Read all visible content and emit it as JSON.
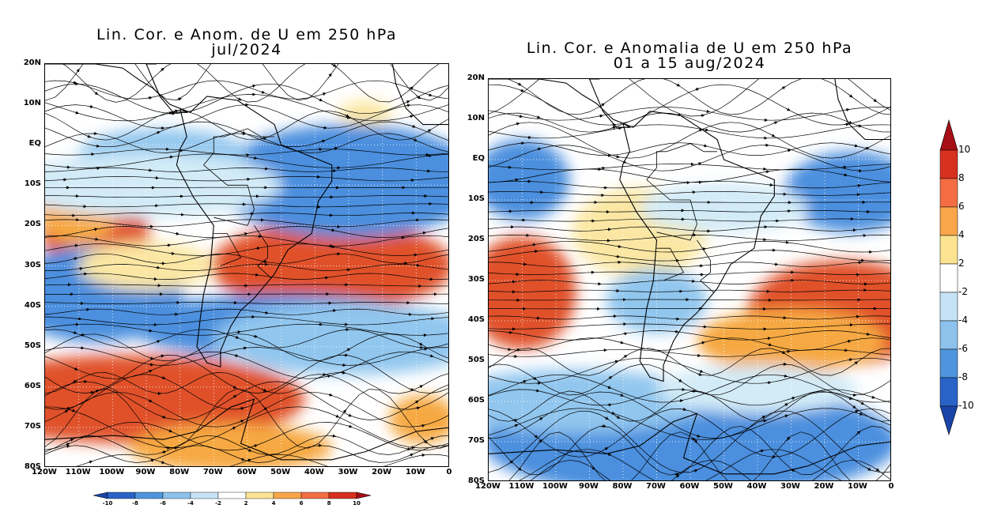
{
  "panels": [
    {
      "id": "jul",
      "title_line1": "Lin. Cor. e Anom. de U em 250 hPa",
      "title_line2": "jul/2024",
      "period": "jul/2024",
      "lat_ticks": [
        "20N",
        "10N",
        "EQ",
        "10S",
        "20S",
        "30S",
        "40S",
        "50S",
        "60S",
        "70S",
        "80S"
      ],
      "lon_ticks": [
        "120W",
        "110W",
        "100W",
        "90W",
        "80W",
        "70W",
        "60W",
        "50W",
        "40W",
        "30W",
        "20W",
        "10W",
        "0"
      ]
    },
    {
      "id": "aug",
      "title_line1": "Lin. Cor. e Anomalia de U em 250 hPa",
      "title_line2": "01 a 15 aug/2024",
      "period": "01 a 15 aug/2024",
      "lat_ticks": [
        "20N",
        "10N",
        "EQ",
        "10S",
        "20S",
        "30S",
        "40S",
        "50S",
        "60S",
        "70S",
        "80S"
      ],
      "lon_ticks": [
        "120W",
        "110W",
        "100W",
        "90W",
        "80W",
        "70W",
        "60W",
        "50W",
        "40W",
        "30W",
        "20W",
        "10W",
        "0"
      ]
    }
  ],
  "colorbar_vertical": {
    "labels": [
      "10",
      "8",
      "6",
      "4",
      "2",
      "-2",
      "-4",
      "-6",
      "-8",
      "-10"
    ],
    "colors": [
      "#a50f15",
      "#d7301f",
      "#f46d43",
      "#f9a54a",
      "#fbe391",
      "#ffffff",
      "#c6e3f5",
      "#8cc2ec",
      "#4f95dd",
      "#2a63c7",
      "#1a44a8"
    ]
  },
  "colorbar_horizontal": {
    "labels": [
      "-10",
      "-8",
      "-6",
      "-4",
      "-2",
      "2",
      "4",
      "6",
      "8",
      "10"
    ]
  },
  "colors": {
    "strong_positive": "#b2180f",
    "positive": "#e0512a",
    "weak_positive": "#f6a943",
    "slight_positive": "#fbe7a3",
    "neutral": "#ffffff",
    "slight_negative": "#d2ebf7",
    "weak_negative": "#91c6ee",
    "negative": "#4b8fde",
    "strong_negative": "#2a5fc4"
  }
}
